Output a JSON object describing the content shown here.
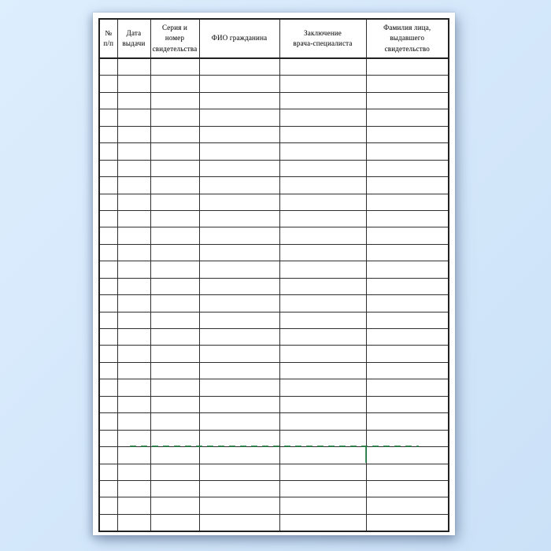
{
  "table": {
    "columns": [
      "№\nп/п",
      "Дата\nвыдачи",
      "Серия и\nномер\nсвидетельства",
      "ФИО гражданина",
      "Заключение\nврача-специалиста",
      "Фамилия лица,\nвыдавшего свидетельство"
    ],
    "empty_row_count": 28
  },
  "annotation": {
    "green_line_color": "#1f7d42"
  },
  "colors": {
    "background_start": "#ddeefd",
    "background_end": "#cbe1f7",
    "page_background": "#ffffff",
    "grid_line": "#2e2e2e",
    "header_text": "#1c1c1c"
  }
}
